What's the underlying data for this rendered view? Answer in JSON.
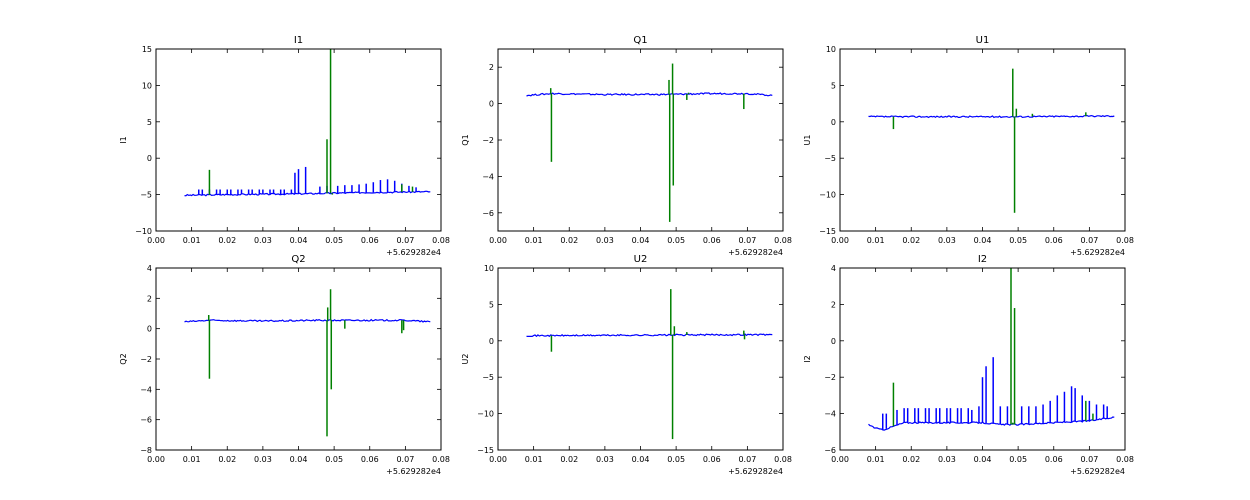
{
  "chart_data": [
    {
      "type": "line",
      "title": "I1",
      "ylabel": "I1",
      "xlabel": "",
      "xlim": [
        0.0,
        0.08
      ],
      "ylim": [
        -10,
        15
      ],
      "xticks": [
        "0.00",
        "0.01",
        "0.02",
        "0.03",
        "0.04",
        "0.05",
        "0.06",
        "0.07",
        "0.08"
      ],
      "yticks": [
        "−10",
        "−5",
        "0",
        "5",
        "10",
        "15"
      ],
      "x_offset": "+5.629282e4",
      "grid": false,
      "series": [
        {
          "color": "#0000ff",
          "baseline": [
            [
              0.008,
              -5.1
            ],
            [
              0.02,
              -5.0
            ],
            [
              0.04,
              -4.9
            ],
            [
              0.05,
              -4.8
            ],
            [
              0.06,
              -4.7
            ],
            [
              0.077,
              -4.6
            ]
          ],
          "spikes": [
            [
              0.012,
              -4.3
            ],
            [
              0.013,
              -4.3
            ],
            [
              0.015,
              -4.3
            ],
            [
              0.017,
              -4.3
            ],
            [
              0.018,
              -4.3
            ],
            [
              0.02,
              -4.3
            ],
            [
              0.021,
              -4.3
            ],
            [
              0.023,
              -4.3
            ],
            [
              0.024,
              -4.3
            ],
            [
              0.026,
              -4.3
            ],
            [
              0.027,
              -4.3
            ],
            [
              0.029,
              -4.3
            ],
            [
              0.03,
              -4.3
            ],
            [
              0.032,
              -4.3
            ],
            [
              0.033,
              -4.3
            ],
            [
              0.035,
              -4.3
            ],
            [
              0.036,
              -4.3
            ],
            [
              0.038,
              -4.3
            ],
            [
              0.039,
              -2.0
            ],
            [
              0.04,
              -1.5
            ],
            [
              0.042,
              -1.2
            ],
            [
              0.046,
              -3.9
            ],
            [
              0.048,
              -3.8
            ],
            [
              0.051,
              -3.8
            ],
            [
              0.053,
              -3.7
            ],
            [
              0.055,
              -3.7
            ],
            [
              0.057,
              -3.6
            ],
            [
              0.059,
              -3.5
            ],
            [
              0.061,
              -3.3
            ],
            [
              0.063,
              -3.0
            ],
            [
              0.065,
              -2.9
            ],
            [
              0.067,
              -3.1
            ],
            [
              0.069,
              -3.5
            ],
            [
              0.071,
              -3.8
            ],
            [
              0.073,
              -4.0
            ]
          ]
        },
        {
          "color": "#008000",
          "baseline": [],
          "spikes": [
            [
              0.015,
              -1.6
            ],
            [
              0.048,
              2.6
            ],
            [
              0.0485,
              -4.8
            ],
            [
              0.049,
              15
            ],
            [
              0.0495,
              -5.0
            ],
            [
              0.069,
              -3.6
            ],
            [
              0.072,
              -3.9
            ]
          ]
        }
      ]
    },
    {
      "type": "line",
      "title": "Q1",
      "ylabel": "Q1",
      "xlabel": "",
      "xlim": [
        0.0,
        0.08
      ],
      "ylim": [
        -7,
        3
      ],
      "xticks": [
        "0.00",
        "0.01",
        "0.02",
        "0.03",
        "0.04",
        "0.05",
        "0.06",
        "0.07",
        "0.08"
      ],
      "yticks": [
        "−6",
        "−4",
        "−2",
        "0",
        "2"
      ],
      "x_offset": "+5.629282e4",
      "grid": false,
      "series": [
        {
          "color": "#0000ff",
          "baseline": [
            [
              0.008,
              0.45
            ],
            [
              0.015,
              0.55
            ],
            [
              0.03,
              0.5
            ],
            [
              0.045,
              0.5
            ],
            [
              0.06,
              0.55
            ],
            [
              0.07,
              0.55
            ],
            [
              0.077,
              0.45
            ]
          ],
          "spikes": []
        },
        {
          "color": "#008000",
          "baseline": [],
          "spikes": [
            [
              0.015,
              -3.2
            ],
            [
              0.0148,
              0.85
            ],
            [
              0.048,
              1.3
            ],
            [
              0.0482,
              -6.5
            ],
            [
              0.049,
              2.2
            ],
            [
              0.0492,
              -4.5
            ],
            [
              0.053,
              0.2
            ],
            [
              0.0535,
              0.6
            ],
            [
              0.069,
              -0.3
            ]
          ]
        }
      ]
    },
    {
      "type": "line",
      "title": "U1",
      "ylabel": "U1",
      "xlabel": "",
      "xlim": [
        0.0,
        0.08
      ],
      "ylim": [
        -15,
        10
      ],
      "xticks": [
        "0.00",
        "0.01",
        "0.02",
        "0.03",
        "0.04",
        "0.05",
        "0.06",
        "0.07",
        "0.08"
      ],
      "yticks": [
        "−15",
        "−10",
        "−5",
        "0",
        "5",
        "10"
      ],
      "x_offset": "+5.629282e4",
      "grid": false,
      "series": [
        {
          "color": "#0000ff",
          "baseline": [
            [
              0.008,
              0.7
            ],
            [
              0.03,
              0.7
            ],
            [
              0.05,
              0.7
            ],
            [
              0.077,
              0.8
            ]
          ],
          "spikes": []
        },
        {
          "color": "#008000",
          "baseline": [],
          "spikes": [
            [
              0.015,
              -1.0
            ],
            [
              0.0485,
              7.3
            ],
            [
              0.049,
              -12.5
            ],
            [
              0.0495,
              1.8
            ],
            [
              0.054,
              1.1
            ],
            [
              0.069,
              1.3
            ]
          ]
        }
      ]
    },
    {
      "type": "line",
      "title": "Q2",
      "ylabel": "Q2",
      "xlabel": "",
      "xlim": [
        0.0,
        0.08
      ],
      "ylim": [
        -8,
        4
      ],
      "xticks": [
        "0.00",
        "0.01",
        "0.02",
        "0.03",
        "0.04",
        "0.05",
        "0.06",
        "0.07",
        "0.08"
      ],
      "yticks": [
        "−8",
        "−6",
        "−4",
        "−2",
        "0",
        "2",
        "4"
      ],
      "x_offset": "+5.629282e4",
      "grid": false,
      "series": [
        {
          "color": "#0000ff",
          "baseline": [
            [
              0.008,
              0.45
            ],
            [
              0.015,
              0.55
            ],
            [
              0.03,
              0.5
            ],
            [
              0.045,
              0.55
            ],
            [
              0.06,
              0.55
            ],
            [
              0.07,
              0.55
            ],
            [
              0.077,
              0.45
            ]
          ],
          "spikes": []
        },
        {
          "color": "#008000",
          "baseline": [],
          "spikes": [
            [
              0.015,
              -3.3
            ],
            [
              0.0148,
              0.9
            ],
            [
              0.048,
              -7.1
            ],
            [
              0.0482,
              1.4
            ],
            [
              0.049,
              2.6
            ],
            [
              0.0492,
              -4.0
            ],
            [
              0.053,
              0.0
            ],
            [
              0.069,
              -0.3
            ],
            [
              0.0695,
              -0.1
            ]
          ]
        }
      ]
    },
    {
      "type": "line",
      "title": "U2",
      "ylabel": "U2",
      "xlabel": "",
      "xlim": [
        0.0,
        0.08
      ],
      "ylim": [
        -15,
        10
      ],
      "xticks": [
        "0.00",
        "0.01",
        "0.02",
        "0.03",
        "0.04",
        "0.05",
        "0.06",
        "0.07",
        "0.08"
      ],
      "yticks": [
        "−15",
        "−10",
        "−5",
        "0",
        "5",
        "10"
      ],
      "x_offset": "+5.629282e4",
      "grid": false,
      "series": [
        {
          "color": "#0000ff",
          "baseline": [
            [
              0.008,
              0.7
            ],
            [
              0.03,
              0.75
            ],
            [
              0.05,
              0.8
            ],
            [
              0.077,
              0.85
            ]
          ],
          "spikes": []
        },
        {
          "color": "#008000",
          "baseline": [],
          "spikes": [
            [
              0.015,
              -1.5
            ],
            [
              0.0485,
              7.1
            ],
            [
              0.049,
              -13.5
            ],
            [
              0.0495,
              2.0
            ],
            [
              0.053,
              1.2
            ],
            [
              0.069,
              1.4
            ],
            [
              0.0692,
              0.2
            ]
          ]
        }
      ]
    },
    {
      "type": "line",
      "title": "I2",
      "ylabel": "I2",
      "xlabel": "",
      "xlim": [
        0.0,
        0.08
      ],
      "ylim": [
        -6,
        4
      ],
      "xticks": [
        "0.00",
        "0.01",
        "0.02",
        "0.03",
        "0.04",
        "0.05",
        "0.06",
        "0.07",
        "0.08"
      ],
      "yticks": [
        "−6",
        "−4",
        "−2",
        "0",
        "2",
        "4"
      ],
      "x_offset": "+5.629282e4",
      "grid": false,
      "series": [
        {
          "color": "#0000ff",
          "baseline": [
            [
              0.008,
              -4.6
            ],
            [
              0.01,
              -4.8
            ],
            [
              0.012,
              -4.9
            ],
            [
              0.015,
              -4.7
            ],
            [
              0.018,
              -4.5
            ],
            [
              0.03,
              -4.5
            ],
            [
              0.04,
              -4.5
            ],
            [
              0.045,
              -4.6
            ],
            [
              0.05,
              -4.6
            ],
            [
              0.06,
              -4.5
            ],
            [
              0.07,
              -4.4
            ],
            [
              0.077,
              -4.2
            ]
          ],
          "spikes": [
            [
              0.012,
              -4.0
            ],
            [
              0.013,
              -4.0
            ],
            [
              0.016,
              -3.8
            ],
            [
              0.018,
              -3.7
            ],
            [
              0.019,
              -3.7
            ],
            [
              0.021,
              -3.7
            ],
            [
              0.022,
              -3.7
            ],
            [
              0.024,
              -3.7
            ],
            [
              0.025,
              -3.7
            ],
            [
              0.027,
              -3.7
            ],
            [
              0.028,
              -3.7
            ],
            [
              0.03,
              -3.7
            ],
            [
              0.031,
              -3.7
            ],
            [
              0.033,
              -3.7
            ],
            [
              0.034,
              -3.7
            ],
            [
              0.036,
              -3.7
            ],
            [
              0.037,
              -3.8
            ],
            [
              0.039,
              -3.6
            ],
            [
              0.04,
              -2.0
            ],
            [
              0.041,
              -1.4
            ],
            [
              0.043,
              -0.9
            ],
            [
              0.045,
              -3.6
            ],
            [
              0.047,
              -3.6
            ],
            [
              0.051,
              -3.6
            ],
            [
              0.053,
              -3.6
            ],
            [
              0.055,
              -3.6
            ],
            [
              0.057,
              -3.5
            ],
            [
              0.059,
              -3.3
            ],
            [
              0.061,
              -3.0
            ],
            [
              0.063,
              -2.8
            ],
            [
              0.065,
              -2.5
            ],
            [
              0.066,
              -2.6
            ],
            [
              0.068,
              -3.0
            ],
            [
              0.07,
              -3.3
            ],
            [
              0.072,
              -3.5
            ],
            [
              0.074,
              -3.5
            ],
            [
              0.075,
              -3.6
            ]
          ]
        },
        {
          "color": "#008000",
          "baseline": [],
          "spikes": [
            [
              0.015,
              -2.3
            ],
            [
              0.048,
              4.0
            ],
            [
              0.0485,
              -4.5
            ],
            [
              0.049,
              1.8
            ],
            [
              0.0495,
              -4.6
            ],
            [
              0.069,
              -3.3
            ],
            [
              0.071,
              -4.0
            ]
          ]
        }
      ]
    }
  ]
}
